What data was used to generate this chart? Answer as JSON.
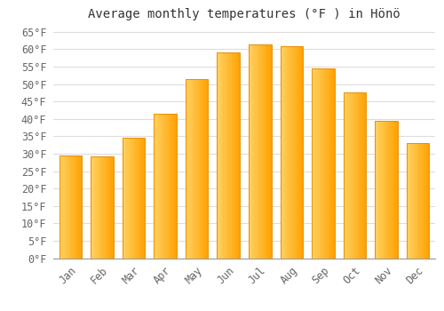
{
  "title": "Average monthly temperatures (°F ) in Hönö",
  "months": [
    "Jan",
    "Feb",
    "Mar",
    "Apr",
    "May",
    "Jun",
    "Jul",
    "Aug",
    "Sep",
    "Oct",
    "Nov",
    "Dec"
  ],
  "values": [
    29.5,
    29.3,
    34.5,
    41.5,
    51.5,
    59.0,
    61.5,
    60.8,
    54.5,
    47.5,
    39.5,
    33.0
  ],
  "bar_color_left": "#FFD060",
  "bar_color_right": "#FFA000",
  "bar_edge_color": "#E89000",
  "background_color": "#FFFFFF",
  "grid_color": "#DDDDDD",
  "ylim": [
    0,
    67
  ],
  "ytick_step": 5,
  "title_fontsize": 10,
  "tick_fontsize": 8.5,
  "font_family": "monospace"
}
